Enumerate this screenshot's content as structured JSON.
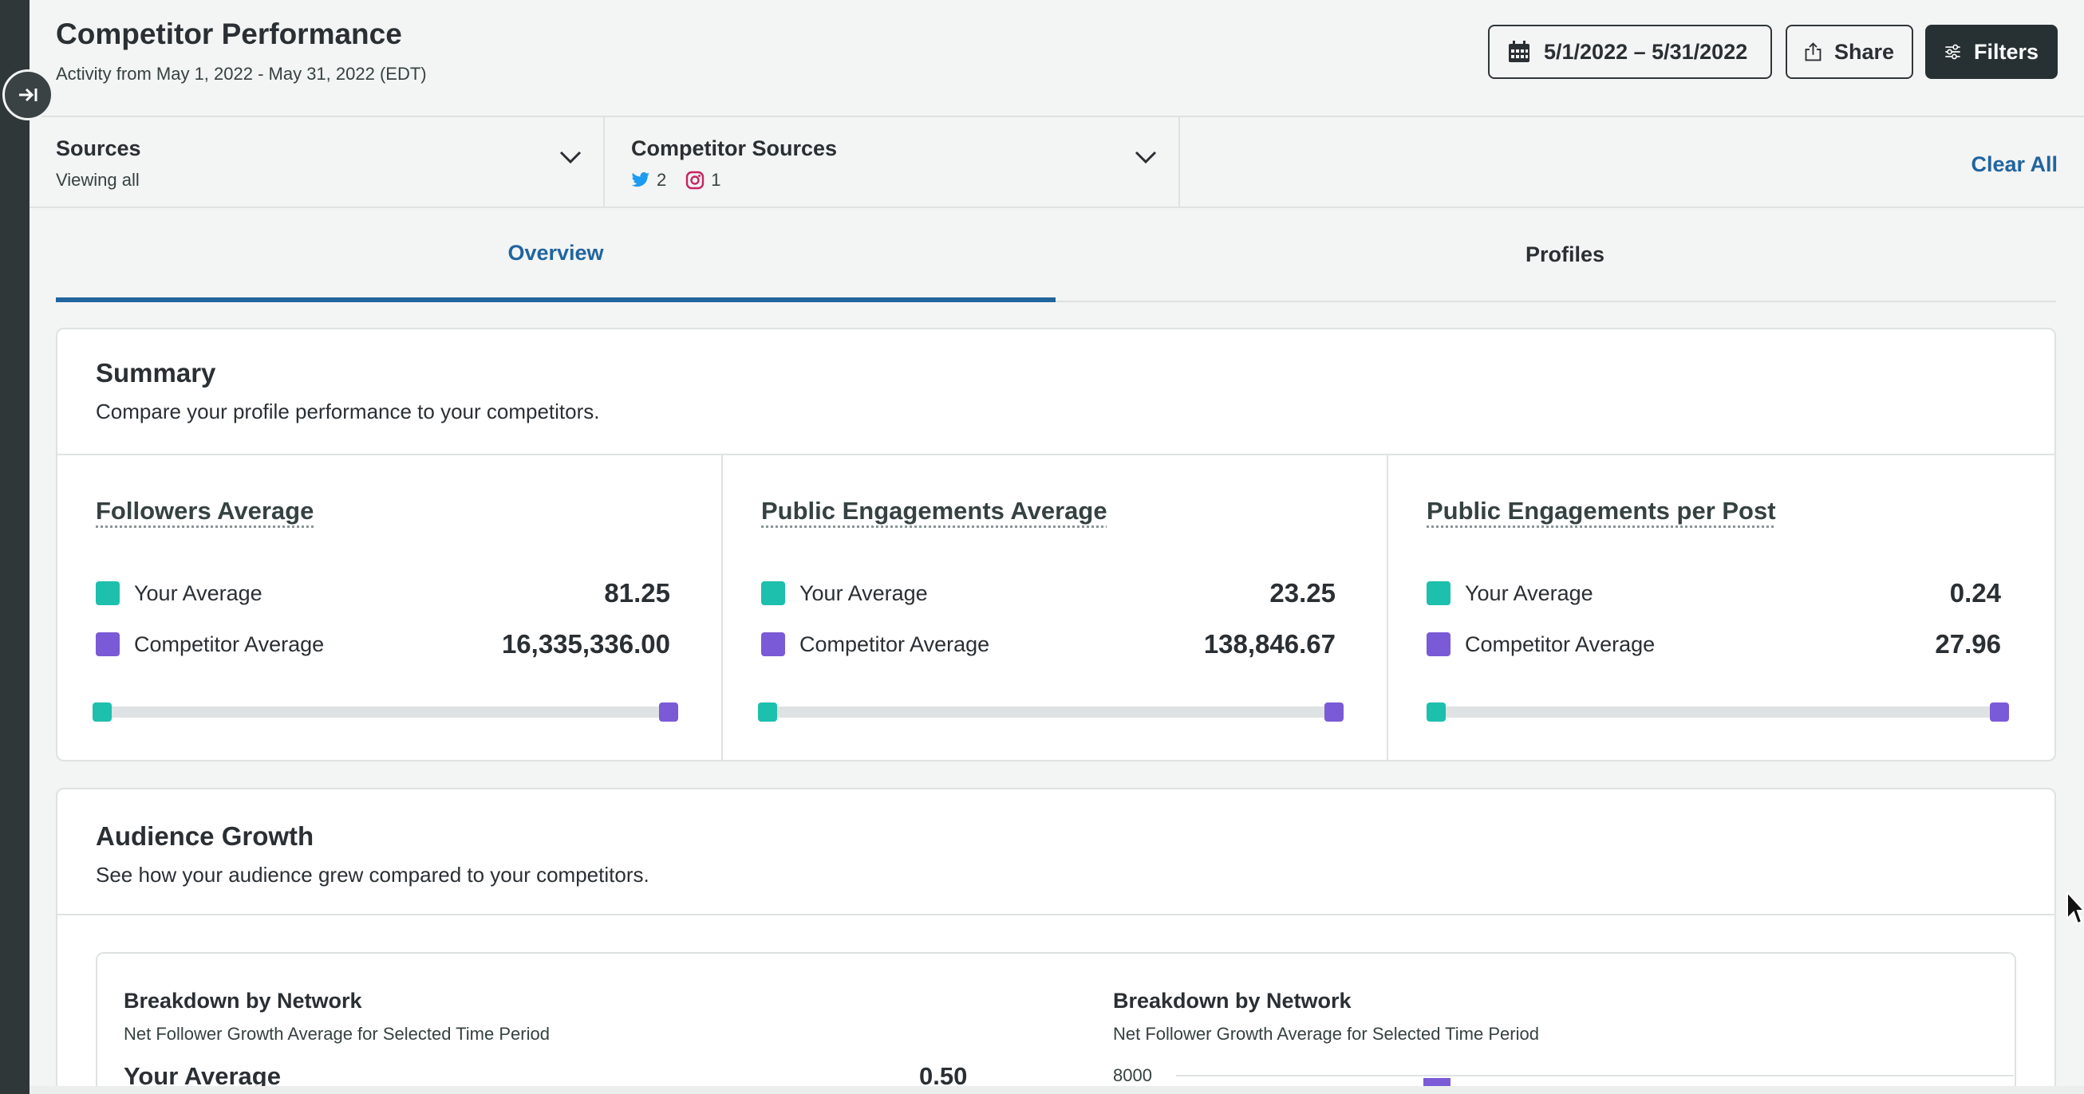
{
  "header": {
    "title": "Competitor Performance",
    "subtitle": "Activity from May 1, 2022 - May 31, 2022 (EDT)",
    "date_range_label": "5/1/2022 – 5/31/2022",
    "share_label": "Share",
    "filters_label": "Filters"
  },
  "filters": {
    "sources": {
      "label": "Sources",
      "value": "Viewing all"
    },
    "competitor_sources": {
      "label": "Competitor Sources",
      "twitter_count": "2",
      "instagram_count": "1"
    },
    "clear_all_label": "Clear All"
  },
  "tabs": [
    {
      "label": "Overview",
      "active": true
    },
    {
      "label": "Profiles",
      "active": false
    }
  ],
  "summary": {
    "title": "Summary",
    "description": "Compare your profile performance to your competitors.",
    "metrics": [
      {
        "title": "Followers Average",
        "your_label": "Your Average",
        "your_value": "81.25",
        "competitor_label": "Competitor Average",
        "competitor_value": "16,335,336.00"
      },
      {
        "title": "Public Engagements Average",
        "your_label": "Your Average",
        "your_value": "23.25",
        "competitor_label": "Competitor Average",
        "competitor_value": "138,846.67"
      },
      {
        "title": "Public Engagements per Post",
        "your_label": "Your Average",
        "your_value": "0.24",
        "competitor_label": "Competitor Average",
        "competitor_value": "27.96"
      }
    ]
  },
  "audience_growth": {
    "title": "Audience Growth",
    "description": "See how your audience grew compared to your competitors.",
    "breakdown_left": {
      "title": "Breakdown by Network",
      "subtitle": "Net Follower Growth Average for Selected Time Period",
      "your_average_label": "Your Average",
      "your_average_value": "0.50"
    },
    "breakdown_right": {
      "title": "Breakdown by Network",
      "subtitle": "Net Follower Growth Average for Selected Time Period",
      "axis_tick": "8000"
    }
  },
  "colors": {
    "your_average": "#1dbfad",
    "competitor_average": "#7a5ad6",
    "accent": "#20659e",
    "twitter": "#1d9bf0",
    "instagram": "#c8235f"
  }
}
